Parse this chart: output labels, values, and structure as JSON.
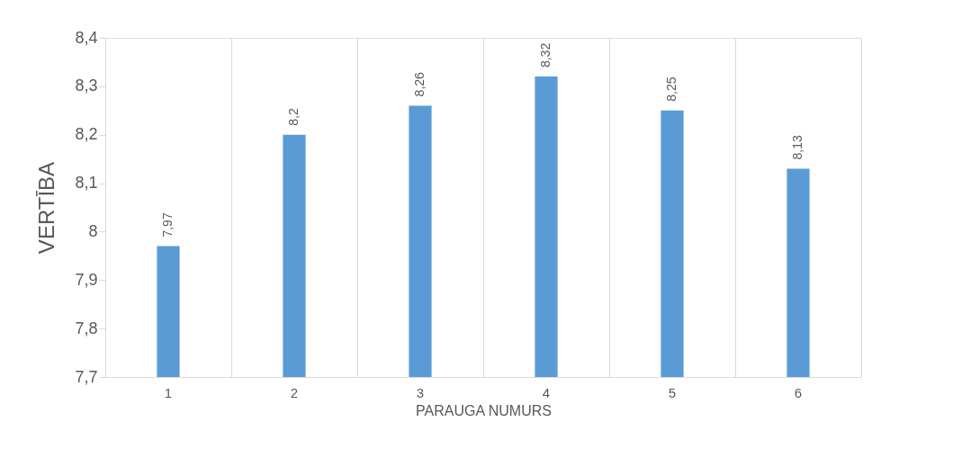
{
  "chart_data": {
    "type": "bar",
    "xlabel": "PARAUGA NUMURS",
    "ylabel": "VERTĪBA",
    "categories": [
      "1",
      "2",
      "3",
      "4",
      "5",
      "6"
    ],
    "values": [
      7.97,
      8.2,
      8.26,
      8.32,
      8.25,
      8.13
    ],
    "value_labels": [
      "7,97",
      "8,2",
      "8,26",
      "8,32",
      "8,25",
      "8,13"
    ],
    "color": "#5b9bd5",
    "ylim": [
      7.7,
      8.4
    ],
    "yticks": [
      {
        "value": 7.7,
        "label": "7,7"
      },
      {
        "value": 7.8,
        "label": "7,8"
      },
      {
        "value": 7.9,
        "label": "7,9"
      },
      8,
      {
        "value": 8.1,
        "label": "8,1"
      },
      {
        "value": 8.2,
        "label": "8,2"
      },
      {
        "value": 8.3,
        "label": "8,3"
      },
      {
        "value": 8.4,
        "label": "8,4"
      }
    ],
    "grid": "x"
  }
}
